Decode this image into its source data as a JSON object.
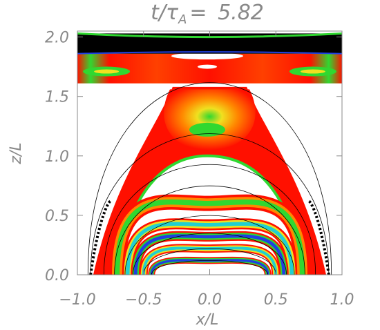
{
  "chart_data": {
    "type": "heatmap",
    "title_parts": {
      "main": "t/τ",
      "sub": "A",
      "eq": "= ",
      "value": "5.82"
    },
    "xlabel": "x/L",
    "ylabel": "z/L",
    "xlim": [
      -1.0,
      1.0
    ],
    "ylim": [
      0.0,
      2.05
    ],
    "xticks": [
      "−1.0",
      "−0.5",
      "0.0",
      "0.5",
      "1.0"
    ],
    "xtick_values": [
      -1.0,
      -0.5,
      0.0,
      0.5,
      1.0
    ],
    "yticks": [
      "0.0",
      "0.5",
      "1.0",
      "1.5",
      "2.0"
    ],
    "ytick_values": [
      0.0,
      0.5,
      1.0,
      1.5,
      2.0
    ],
    "colormap": "rainbow",
    "colors": {
      "black": "#000000",
      "blue": "#2040e0",
      "cyan": "#20d0d0",
      "green": "#30d830",
      "yellow": "#f0e020",
      "orange": "#ff8800",
      "red": "#ff1000",
      "label_gray": "#888888"
    },
    "field_line_apexes": [
      1.62,
      1.19,
      0.93,
      0.75,
      0.5,
      0.35,
      0.22,
      0.12
    ],
    "field_line_half_widths": [
      0.92,
      0.9,
      0.8,
      0.72,
      0.64,
      0.58,
      0.5,
      0.44
    ]
  }
}
